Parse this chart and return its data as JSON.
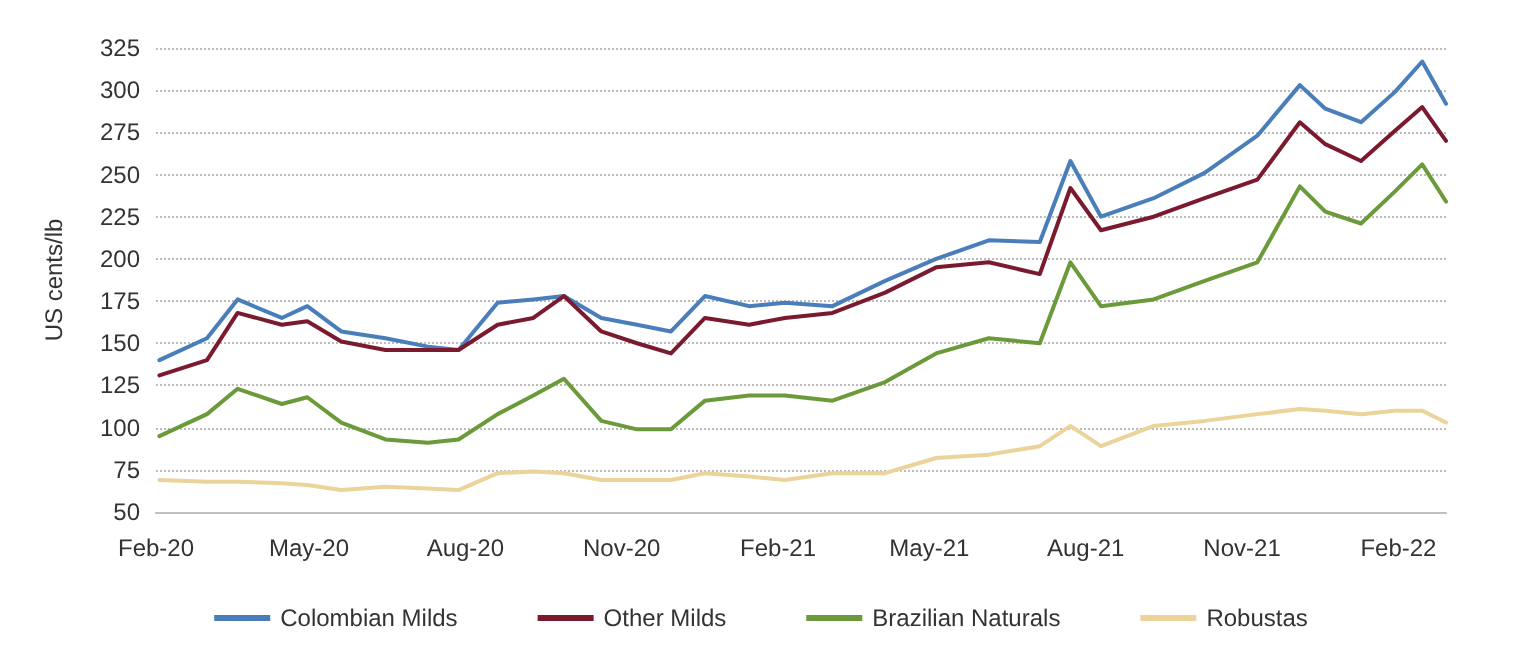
{
  "chart_data": {
    "type": "line",
    "ylabel": "US cents/lb",
    "x": [
      "2020-02-03",
      "2020-03-02",
      "2020-03-20",
      "2020-04-15",
      "2020-04-30",
      "2020-05-20",
      "2020-06-15",
      "2020-07-10",
      "2020-07-28",
      "2020-08-20",
      "2020-09-10",
      "2020-09-28",
      "2020-10-20",
      "2020-11-10",
      "2020-11-30",
      "2020-12-20",
      "2021-01-15",
      "2021-02-05",
      "2021-03-05",
      "2021-04-05",
      "2021-05-05",
      "2021-06-05",
      "2021-07-05",
      "2021-07-23",
      "2021-08-10",
      "2021-09-10",
      "2021-10-10",
      "2021-11-10",
      "2021-12-05",
      "2021-12-20",
      "2022-01-10",
      "2022-01-30",
      "2022-02-15",
      "2022-03-01"
    ],
    "series": [
      {
        "name": "Colombian Milds",
        "color": "#4a7ebb",
        "values": [
          140,
          153,
          176,
          165,
          172,
          157,
          153,
          148,
          146,
          174,
          176,
          178,
          165,
          161,
          157,
          178,
          172,
          174,
          172,
          187,
          200,
          211,
          210,
          258,
          225,
          236,
          251,
          273,
          303,
          289,
          281,
          299,
          317,
          292
        ]
      },
      {
        "name": "Other Milds",
        "color": "#7b1a2e",
        "values": [
          131,
          140,
          168,
          161,
          163,
          151,
          146,
          146,
          146,
          161,
          165,
          178,
          157,
          150,
          144,
          165,
          161,
          165,
          168,
          180,
          195,
          198,
          191,
          242,
          217,
          225,
          236,
          247,
          281,
          268,
          258,
          276,
          290,
          270
        ]
      },
      {
        "name": "Brazilian Naturals",
        "color": "#6a9a3a",
        "values": [
          95,
          108,
          123,
          114,
          118,
          103,
          93,
          91,
          93,
          108,
          119,
          129,
          104,
          99,
          99,
          116,
          119,
          119,
          116,
          127,
          144,
          153,
          150,
          198,
          172,
          176,
          187,
          198,
          243,
          228,
          221,
          240,
          256,
          234
        ]
      },
      {
        "name": "Robustas",
        "color": "#ecd39a",
        "values": [
          69,
          68,
          68,
          67,
          66,
          63,
          65,
          64,
          63,
          73,
          74,
          73,
          69,
          69,
          69,
          73,
          71,
          69,
          73,
          73,
          82,
          84,
          89,
          101,
          89,
          101,
          104,
          108,
          111,
          110,
          108,
          110,
          110,
          103
        ]
      }
    ],
    "xlim": [
      "2020-02-01",
      "2022-03-01"
    ],
    "xticks": [
      {
        "value": "2020-02-01",
        "label": "Feb-20"
      },
      {
        "value": "2020-05-01",
        "label": "May-20"
      },
      {
        "value": "2020-08-01",
        "label": "Aug-20"
      },
      {
        "value": "2020-11-01",
        "label": "Nov-20"
      },
      {
        "value": "2021-02-01",
        "label": "Feb-21"
      },
      {
        "value": "2021-05-01",
        "label": "May-21"
      },
      {
        "value": "2021-08-01",
        "label": "Aug-21"
      },
      {
        "value": "2021-11-01",
        "label": "Nov-21"
      },
      {
        "value": "2022-02-01",
        "label": "Feb-22"
      }
    ],
    "ylim": [
      50,
      325
    ],
    "yticks": [
      50,
      75,
      100,
      125,
      150,
      175,
      200,
      225,
      250,
      275,
      300,
      325
    ],
    "grid": "y",
    "legend": "bottom",
    "marker": "none",
    "line_style": "solid"
  }
}
